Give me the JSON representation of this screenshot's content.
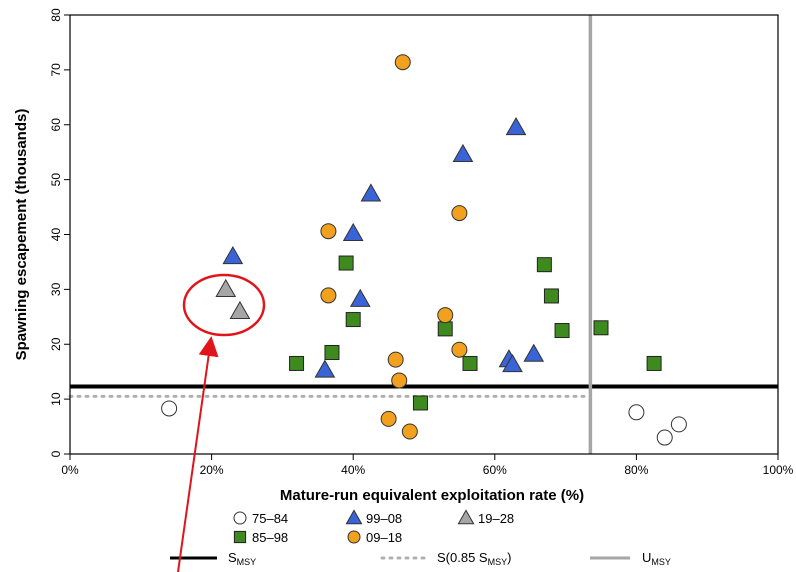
{
  "chart_data": {
    "type": "scatter",
    "xlabel": "Mature-run equivalent exploitation rate (%)",
    "ylabel": "Spawning escapement (thousands)",
    "xlim": [
      0,
      100
    ],
    "ylim": [
      0,
      80
    ],
    "x_ticks": [
      0,
      20,
      40,
      60,
      80,
      100
    ],
    "x_tick_labels": [
      "0%",
      "20%",
      "40%",
      "60%",
      "80%",
      "100%"
    ],
    "y_ticks": [
      0,
      10,
      20,
      30,
      40,
      50,
      60,
      70,
      80
    ],
    "y_tick_labels": [
      "0",
      "10",
      "20",
      "30",
      "40",
      "50",
      "60",
      "70",
      "80"
    ],
    "grid": false,
    "series": [
      {
        "name": "75–84",
        "marker": "circle",
        "fill": "#ffffff",
        "points": [
          [
            14,
            8.3
          ],
          [
            80,
            7.6
          ],
          [
            84,
            3.0
          ],
          [
            86,
            5.4
          ]
        ]
      },
      {
        "name": "85–98",
        "marker": "square",
        "fill": "#3f8a1f",
        "points": [
          [
            32,
            16.5
          ],
          [
            37,
            18.5
          ],
          [
            39,
            34.8
          ],
          [
            40,
            24.5
          ],
          [
            49.5,
            9.3
          ],
          [
            53,
            22.8
          ],
          [
            56.5,
            16.5
          ],
          [
            67,
            34.5
          ],
          [
            68,
            28.8
          ],
          [
            69.5,
            22.5
          ],
          [
            75,
            23.0
          ],
          [
            82.5,
            16.5
          ]
        ]
      },
      {
        "name": "99–08",
        "marker": "triangle",
        "fill": "#3a63d6",
        "points": [
          [
            23,
            36.0
          ],
          [
            36,
            15.3
          ],
          [
            40,
            40.2
          ],
          [
            41,
            28.2
          ],
          [
            42.5,
            47.4
          ],
          [
            55.5,
            54.6
          ],
          [
            62,
            17.2
          ],
          [
            62.5,
            16.3
          ],
          [
            63,
            59.5
          ],
          [
            65.5,
            18.2
          ]
        ]
      },
      {
        "name": "09–18",
        "marker": "circle",
        "fill": "#f2a11f",
        "points": [
          [
            36.5,
            40.6
          ],
          [
            36.5,
            28.9
          ],
          [
            45,
            6.4
          ],
          [
            46,
            17.2
          ],
          [
            46.5,
            13.4
          ],
          [
            47,
            71.4
          ],
          [
            48,
            4.1
          ],
          [
            53,
            25.3
          ],
          [
            55,
            19.0
          ],
          [
            55,
            43.9
          ]
        ]
      },
      {
        "name": "19–28",
        "marker": "triangle",
        "fill": "#a6a6a6",
        "points": [
          [
            22,
            30.0
          ],
          [
            24,
            26.0
          ]
        ]
      }
    ],
    "reference_lines": {
      "smsy": {
        "y": 12.3,
        "main": "S",
        "sub": "MSY",
        "color": "#000000"
      },
      "s085": {
        "y": 10.5,
        "prefix": "S(0.85 S",
        "sub": "MSY",
        "suffix": ")",
        "color": "#b0b0b0"
      },
      "umsy": {
        "x": 73.5,
        "main": "U",
        "sub": "MSY",
        "color": "#a6a6a6"
      }
    },
    "legend_placement": "bottom",
    "annotation": {
      "type": "ellipse-with-arrow",
      "color": "#e0141b",
      "highlights": "19–28"
    }
  }
}
